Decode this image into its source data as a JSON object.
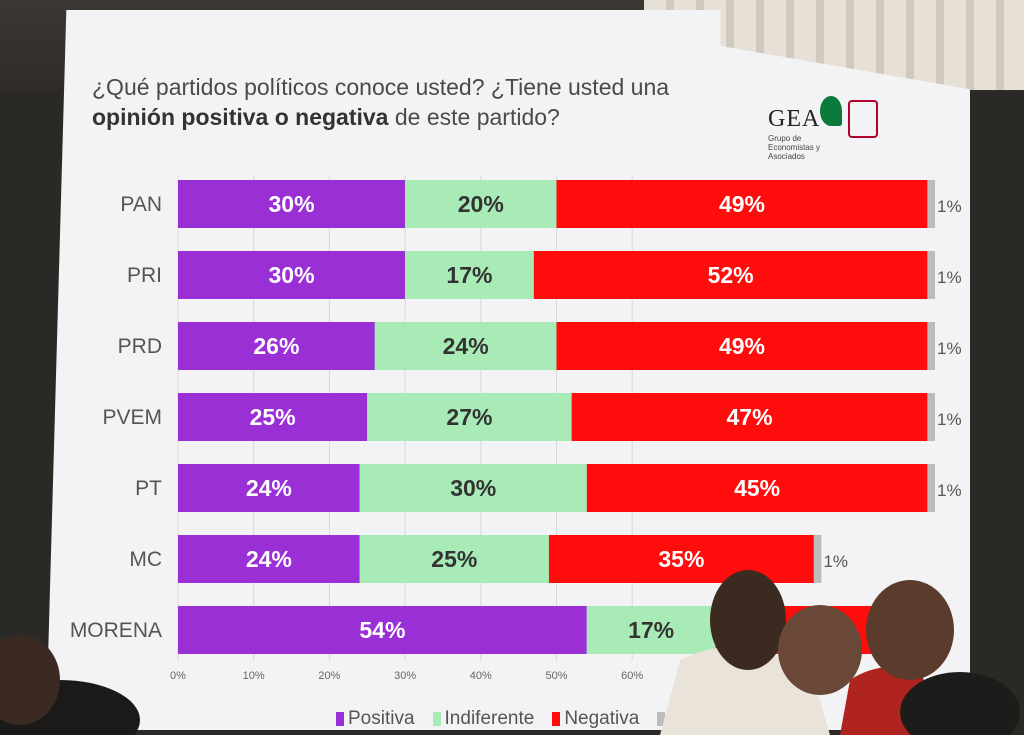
{
  "chart_data": {
    "type": "bar",
    "orientation": "horizontal",
    "stacked": true,
    "title_line1": "¿Qué partidos políticos conoce usted? ¿Tiene usted una",
    "title_line2_bold": "opinión positiva o negativa",
    "title_line2_rest": " de este partido?",
    "categories": [
      "PAN",
      "PRI",
      "PRD",
      "PVEM",
      "PT",
      "MC",
      "MORENA"
    ],
    "series": [
      {
        "name": "Positiva",
        "color": "#9a2fd6",
        "values": [
          30,
          30,
          26,
          25,
          24,
          24,
          54
        ]
      },
      {
        "name": "Indiferente",
        "color": "#a8ebb6",
        "values": [
          20,
          17,
          24,
          27,
          30,
          25,
          17
        ]
      },
      {
        "name": "Negativa",
        "color": "#ff0d0d",
        "values": [
          49,
          52,
          49,
          47,
          45,
          35,
          27
        ]
      },
      {
        "name": "",
        "color": "#bcbcbc",
        "values": [
          1,
          1,
          1,
          1,
          1,
          1,
          1
        ]
      }
    ],
    "labels": {
      "Positiva": [
        "30%",
        "30%",
        "26%",
        "25%",
        "24%",
        "24%",
        "54%"
      ],
      "Indiferente": [
        "20%",
        "17%",
        "24%",
        "27%",
        "30%",
        "25%",
        "17%"
      ],
      "Negativa": [
        "49%",
        "52%",
        "49%",
        "47%",
        "45%",
        "35%",
        ""
      ],
      "Other": [
        "1%",
        "1%",
        "1%",
        "1%",
        "1%",
        "1%",
        ""
      ]
    },
    "xlim": [
      0,
      100
    ],
    "xticks": [
      "0%",
      "10%",
      "20%",
      "30%",
      "40%",
      "50%",
      "60%"
    ],
    "grid": true,
    "legend_position": "bottom"
  },
  "logo": {
    "name": "GEA",
    "sub": "Grupo de Economistas y Asociados"
  }
}
